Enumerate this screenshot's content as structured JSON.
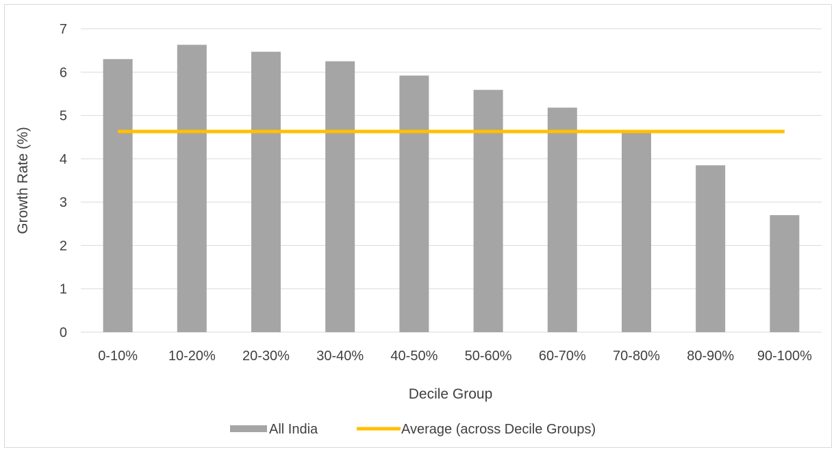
{
  "chart_data": {
    "type": "bar",
    "title": "",
    "xlabel": "Decile Group",
    "ylabel": "Growth Rate (%)",
    "categories": [
      "0-10%",
      "10-20%",
      "20-30%",
      "30-40%",
      "40-50%",
      "50-60%",
      "60-70%",
      "70-80%",
      "80-90%",
      "90-100%"
    ],
    "series": [
      {
        "name": "All India",
        "type": "bar",
        "color": "#a5a5a5",
        "values": [
          6.3,
          6.63,
          6.47,
          6.25,
          5.92,
          5.59,
          5.18,
          4.63,
          3.85,
          2.7
        ]
      },
      {
        "name": "Average (across Decile Groups)",
        "type": "line",
        "color": "#ffc000",
        "values": [
          4.63,
          4.63,
          4.63,
          4.63,
          4.63,
          4.63,
          4.63,
          4.63,
          4.63,
          4.63
        ]
      }
    ],
    "ylim": [
      0,
      7
    ],
    "yticks": [
      0,
      1,
      2,
      3,
      4,
      5,
      6,
      7
    ],
    "grid": true,
    "legend_position": "bottom",
    "gridline_color": "#d9d9d9",
    "axis_line_color": "#d9d9d9"
  }
}
